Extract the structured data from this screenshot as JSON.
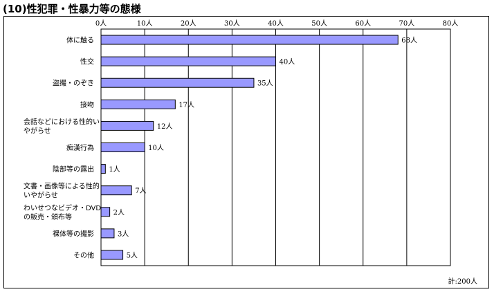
{
  "title": "(10)性犯罪・性暴力等の態様",
  "total": "計:200人",
  "chart_data": {
    "type": "bar",
    "orientation": "horizontal",
    "title": "(10)性犯罪・性暴力等の態様",
    "unit": "人",
    "xlim": [
      0,
      80
    ],
    "xticks": [
      0,
      10,
      20,
      30,
      40,
      50,
      60,
      70,
      80
    ],
    "xtick_labels": [
      "0人",
      "10人",
      "20人",
      "30人",
      "40人",
      "50人",
      "60人",
      "70人",
      "80人"
    ],
    "grid": true,
    "bar_color": "#9999ff",
    "categories": [
      [
        "体に触る"
      ],
      [
        "性交"
      ],
      [
        "盗撮・のぞき"
      ],
      [
        "接吻"
      ],
      [
        "会話などにおける性的い",
        "やがらせ"
      ],
      [
        "痴漢行為"
      ],
      [
        "陰部等の露出"
      ],
      [
        "文書・画像等による性的",
        "いやがらせ"
      ],
      [
        "わいせつなビデオ・DVD",
        "の販売・頒布等"
      ],
      [
        "裸体等の撮影"
      ],
      [
        "その他"
      ]
    ],
    "values": [
      68,
      40,
      35,
      17,
      12,
      10,
      1,
      7,
      2,
      3,
      5
    ],
    "value_labels": [
      "68人",
      "40人",
      "35人",
      "17人",
      "12人",
      "10人",
      "1人",
      "7人",
      "2人",
      "3人",
      "5人"
    ]
  }
}
